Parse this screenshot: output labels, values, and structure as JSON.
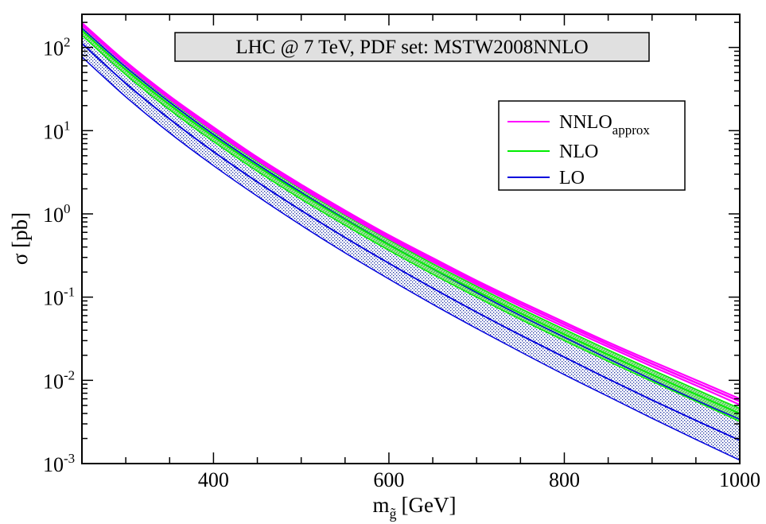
{
  "chart_data": {
    "type": "line",
    "title": "LHC @ 7 TeV, PDF set: MSTW2008NNLO",
    "xlabel": {
      "main": "m",
      "subscript": "g̃",
      "unit": "[GeV]"
    },
    "ylabel": "σ [pb]",
    "xlim": [
      250,
      1000
    ],
    "ylim": [
      0.001,
      250
    ],
    "yscale": "log",
    "x_tick_labels": [
      {
        "value": 400,
        "label": "400"
      },
      {
        "value": 600,
        "label": "600"
      },
      {
        "value": 800,
        "label": "800"
      },
      {
        "value": 1000,
        "label": "1000"
      }
    ],
    "y_tick_labels": [
      {
        "value": 0.001,
        "base": "10",
        "exp": "-3"
      },
      {
        "value": 0.01,
        "base": "10",
        "exp": "-2"
      },
      {
        "value": 0.1,
        "base": "10",
        "exp": "-1"
      },
      {
        "value": 1,
        "base": "10",
        "exp": "0"
      },
      {
        "value": 10,
        "base": "10",
        "exp": "1"
      },
      {
        "value": 100,
        "base": "10",
        "exp": "2"
      }
    ],
    "x": [
      250,
      300,
      350,
      400,
      450,
      500,
      550,
      600,
      650,
      700,
      750,
      800,
      850,
      900,
      950,
      1000
    ],
    "series": [
      {
        "name": "NNLO",
        "subscript": "approx",
        "color": "#ff00ff",
        "central": [
          190,
          65,
          25,
          10.5,
          4.6,
          2.15,
          1.05,
          0.53,
          0.28,
          0.15,
          0.083,
          0.047,
          0.027,
          0.0158,
          0.0094,
          0.0056
        ],
        "low": [
          183,
          62.5,
          24,
          10.0,
          4.4,
          2.05,
          1.0,
          0.505,
          0.265,
          0.142,
          0.078,
          0.044,
          0.0253,
          0.0147,
          0.0087,
          0.0051
        ],
        "high": [
          197,
          67.5,
          26,
          11.0,
          4.8,
          2.25,
          1.1,
          0.555,
          0.295,
          0.158,
          0.088,
          0.05,
          0.0287,
          0.0169,
          0.0101,
          0.006
        ]
      },
      {
        "name": "NLO",
        "subscript": "",
        "color": "#00ee00",
        "central": [
          160,
          54,
          20.5,
          8.5,
          3.75,
          1.75,
          0.85,
          0.425,
          0.22,
          0.118,
          0.064,
          0.0357,
          0.0203,
          0.0117,
          0.0068,
          0.004
        ],
        "low": [
          140,
          47,
          17.8,
          7.4,
          3.25,
          1.5,
          0.73,
          0.365,
          0.188,
          0.1,
          0.054,
          0.03,
          0.0169,
          0.0097,
          0.0056,
          0.0032
        ],
        "high": [
          185,
          62,
          23.5,
          9.8,
          4.3,
          2.0,
          0.97,
          0.49,
          0.252,
          0.135,
          0.073,
          0.041,
          0.0232,
          0.0134,
          0.0078,
          0.0046
        ]
      },
      {
        "name": "LO",
        "subscript": "",
        "color": "#0000dd",
        "central": [
          112,
          37,
          13.8,
          5.6,
          2.42,
          1.1,
          0.52,
          0.255,
          0.128,
          0.066,
          0.035,
          0.019,
          0.0104,
          0.0058,
          0.0033,
          0.0019
        ],
        "low": [
          77,
          25.5,
          9.4,
          3.8,
          1.63,
          0.73,
          0.34,
          0.165,
          0.082,
          0.042,
          0.022,
          0.0117,
          0.0064,
          0.0035,
          0.00195,
          0.0011
        ],
        "high": [
          170,
          58,
          22.0,
          9.0,
          3.95,
          1.82,
          0.87,
          0.43,
          0.218,
          0.113,
          0.06,
          0.033,
          0.0182,
          0.0102,
          0.0058,
          0.0034
        ]
      }
    ],
    "grid": false,
    "legend_position": "top-right",
    "annotation_box": "top-center"
  }
}
